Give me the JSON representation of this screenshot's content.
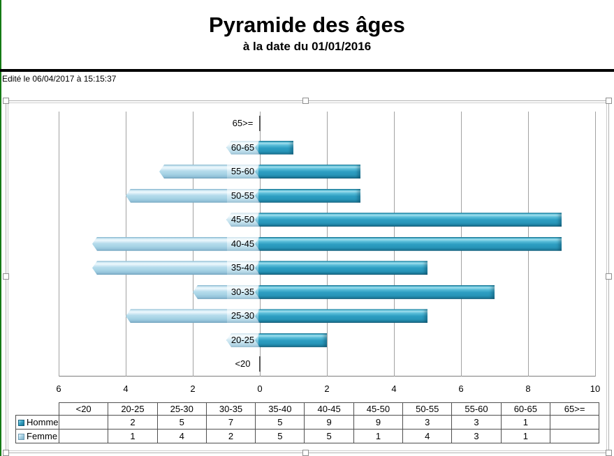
{
  "header": {
    "title": "Pyramide des âges",
    "subtitle": "à la date du 01/01/2016",
    "edited_line": "Edité le 06/04/2017 à 15:15:37"
  },
  "chart_data": {
    "type": "bar",
    "variant": "population-pyramid-horizontal",
    "title": "Pyramide des âges",
    "subtitle": "à la date du 01/01/2016",
    "categories": [
      "<20",
      "20-25",
      "25-30",
      "30-35",
      "35-40",
      "40-45",
      "45-50",
      "50-55",
      "55-60",
      "60-65",
      "65>="
    ],
    "series": [
      {
        "name": "Homme",
        "side": "right",
        "color": "#2D9EC2",
        "values": [
          null,
          2,
          5,
          7,
          5,
          9,
          9,
          3,
          3,
          1,
          null
        ]
      },
      {
        "name": "Femme",
        "side": "left",
        "color": "#A6D4E6",
        "values": [
          null,
          1,
          4,
          2,
          5,
          5,
          1,
          4,
          3,
          1,
          null
        ]
      }
    ],
    "x_axis": {
      "tick_labels": [
        "6",
        "4",
        "2",
        "0",
        "2",
        "4",
        "6",
        "8",
        "10"
      ],
      "tick_values": [
        -6,
        -4,
        -2,
        0,
        2,
        4,
        6,
        8,
        10
      ],
      "xlim": [
        -6,
        10
      ]
    },
    "grid": true,
    "gridline_every": 2,
    "legend_position": "table-row-headers"
  },
  "table": {
    "corner_label": "",
    "columns": [
      "<20",
      "20-25",
      "25-30",
      "30-35",
      "35-40",
      "40-45",
      "45-50",
      "50-55",
      "55-60",
      "60-65",
      "65>="
    ],
    "rows": [
      {
        "label": "Homme",
        "icon": "homme-legend-icon",
        "values": [
          "",
          "2",
          "5",
          "7",
          "5",
          "9",
          "9",
          "3",
          "3",
          "1",
          ""
        ]
      },
      {
        "label": "Femme",
        "icon": "femme-legend-icon",
        "values": [
          "",
          "1",
          "4",
          "2",
          "5",
          "5",
          "1",
          "4",
          "3",
          "1",
          ""
        ]
      }
    ]
  },
  "colors": {
    "homme_bar": "#2D9EC2",
    "femme_bar": "#A6D4E6",
    "gridline": "#A2A2A2",
    "left_edge": "#147A14",
    "rule": "#000000"
  }
}
